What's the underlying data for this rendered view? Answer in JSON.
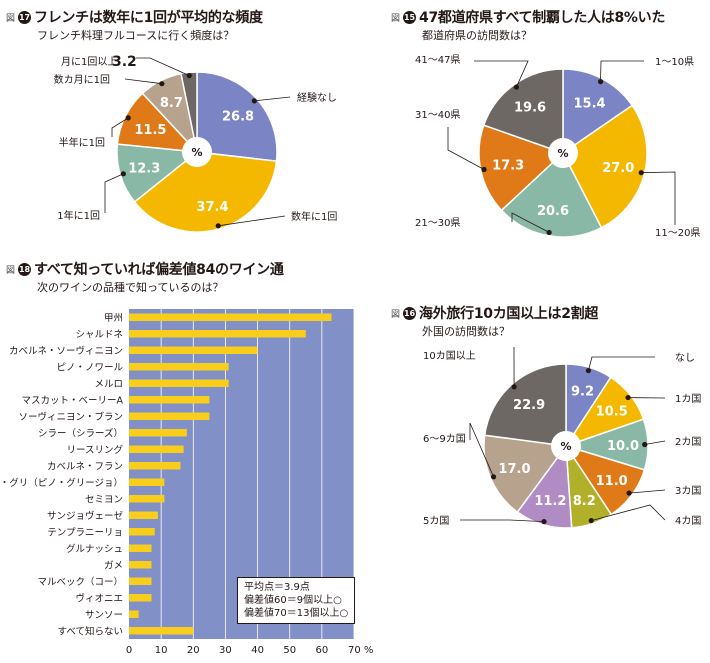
{
  "fig17": {
    "prefix": "図",
    "number": "17",
    "title": "フレンチは数年に1回が平均的な頻度",
    "question": "フレンチ料理フルコースに行く頻度は？",
    "center": "%",
    "big_value": "3.2"
  },
  "fig15": {
    "prefix": "図",
    "number": "15",
    "title": "47都道府県すべて制覇した人は8%いた",
    "question": "都道府県の訪問数は？",
    "center": "%"
  },
  "fig18": {
    "prefix": "図",
    "number": "18",
    "title": "すべて知っていれば偏差値84のワイン通",
    "question": "次のワインの品種で知っているのは？",
    "note": [
      "平均点＝3.9点",
      "偏差値60＝9個以上○",
      "偏差値70＝13個以上○"
    ]
  },
  "fig16": {
    "prefix": "図",
    "number": "16",
    "title": "海外旅行10カ国以上は2割超",
    "question": "外国の訪問数は？",
    "center": "%"
  },
  "colors": {
    "blue": "#7b84c4",
    "yellow": "#f5b800",
    "teal": "#8ab8a6",
    "orange": "#e07a18",
    "tan": "#b7a28e",
    "gray": "#6e6864",
    "purple": "#b18cc4",
    "olive": "#b2b02a",
    "plot_bg": "#8191c7",
    "bar": "#f8cd1c",
    "grid": "#ffffff"
  },
  "chart_data": [
    {
      "id": "fig17",
      "type": "pie",
      "labels": [
        "経験なし",
        "数年に1回",
        "1年に1回",
        "半年に1回",
        "数カ月に1回",
        "月に1回以上"
      ],
      "values": [
        26.8,
        37.4,
        12.3,
        11.5,
        8.7,
        3.2
      ],
      "value_labels": [
        "26.8",
        "37.4",
        "12.3",
        "11.5",
        "8.7",
        ""
      ],
      "colors": [
        "#7b84c4",
        "#f5b800",
        "#8ab8a6",
        "#e07a18",
        "#b7a28e",
        "#6e6864"
      ]
    },
    {
      "id": "fig15",
      "type": "pie",
      "labels": [
        "1〜10県",
        "11〜20県",
        "21〜30県",
        "31〜40県",
        "41〜47県"
      ],
      "values": [
        15.4,
        27.0,
        20.6,
        17.3,
        19.6
      ],
      "value_labels": [
        "15.4",
        "27.0",
        "20.6",
        "17.3",
        "19.6"
      ],
      "colors": [
        "#7b84c4",
        "#f5b800",
        "#8ab8a6",
        "#e07a18",
        "#6e6864"
      ]
    },
    {
      "id": "fig18",
      "type": "bar",
      "orientation": "horizontal",
      "categories": [
        "甲州",
        "シャルドネ",
        "カベルネ・ソーヴィニヨン",
        "ピノ・ノワール",
        "メルロ",
        "マスカット・ベーリーA",
        "ソーヴィニヨン・ブラン",
        "シラー（シラーズ）",
        "リースリング",
        "カベルネ・フラン",
        "ピノ・グリ（ピノ・グリージョ）",
        "セミヨン",
        "サンジョヴェーゼ",
        "テンプラニーリョ",
        "グルナッシュ",
        "ガメ",
        "マルベック（コー）",
        "ヴィオニエ",
        "サンソー",
        "すべて知らない"
      ],
      "values": [
        63,
        55,
        40,
        31,
        31,
        25,
        25,
        18,
        17,
        16,
        11,
        11,
        9,
        8,
        7,
        7,
        7,
        7,
        3,
        20
      ],
      "xlim": [
        0,
        70
      ],
      "x_ticks": [
        "0",
        "10",
        "20",
        "30",
        "40",
        "50",
        "60",
        "70"
      ],
      "x_unit": "%",
      "grid": true
    },
    {
      "id": "fig16",
      "type": "pie",
      "labels": [
        "なし",
        "1カ国",
        "2カ国",
        "3カ国",
        "4カ国",
        "5カ国",
        "6〜9カ国",
        "10カ国以上"
      ],
      "values": [
        9.2,
        10.5,
        10.0,
        11.0,
        8.2,
        11.2,
        17.0,
        22.9
      ],
      "value_labels": [
        "9.2",
        "10.5",
        "10.0",
        "11.0",
        "8.2",
        "11.2",
        "17.0",
        "22.9"
      ],
      "colors": [
        "#7b84c4",
        "#f5b800",
        "#8ab8a6",
        "#e07a18",
        "#b2b02a",
        "#b18cc4",
        "#b7a28e",
        "#6e6864"
      ]
    }
  ]
}
